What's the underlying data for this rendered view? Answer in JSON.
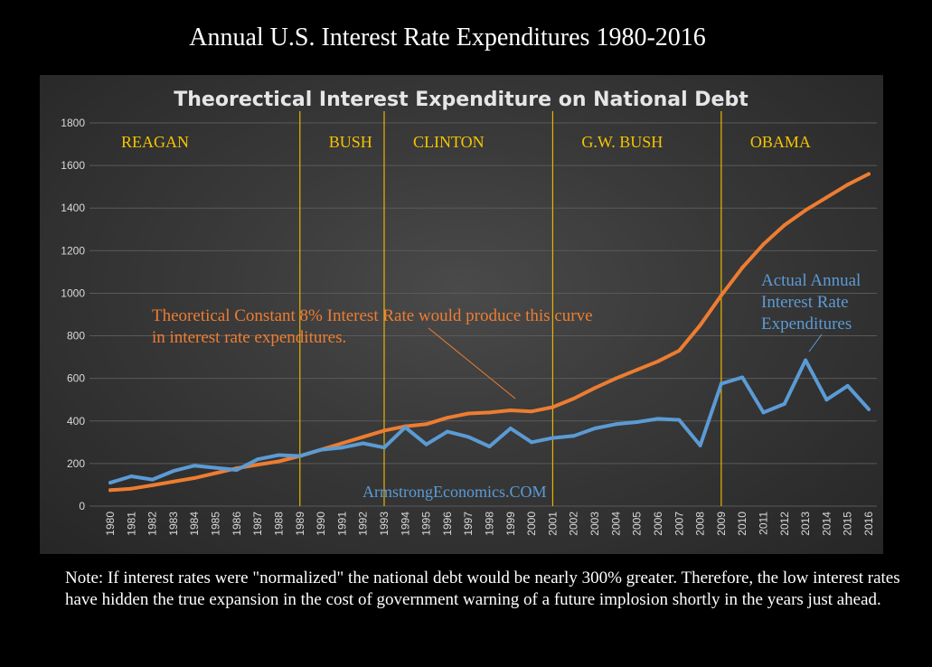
{
  "page_title": "Annual U.S. Interest Rate Expenditures 1980-2016",
  "note": "Note: If interest rates were \"normalized\" the national debt would be nearly 300% greater. Therefore, the low interest rates have hidden the true expansion in the cost of government warning of a future implosion shortly in the years just ahead.",
  "chart_data": {
    "type": "line",
    "title": "Theorectical  Interest  Expenditure  on  National  Debt",
    "xlabel": "",
    "ylabel": "",
    "ylim": [
      0,
      1800
    ],
    "yticks": [
      0,
      200,
      400,
      600,
      800,
      1000,
      1200,
      1400,
      1600,
      1800
    ],
    "grid": true,
    "x": [
      1980,
      1981,
      1982,
      1983,
      1984,
      1985,
      1986,
      1987,
      1988,
      1989,
      1990,
      1991,
      1992,
      1993,
      1994,
      1995,
      1996,
      1997,
      1998,
      1999,
      2000,
      2001,
      2002,
      2003,
      2004,
      2005,
      2006,
      2007,
      2008,
      2009,
      2010,
      2011,
      2012,
      2013,
      2014,
      2015,
      2016
    ],
    "series": [
      {
        "name": "Theoretical Constant 8% Interest Rate",
        "color": "#ED7D31",
        "values": [
          75,
          82,
          98,
          115,
          132,
          155,
          178,
          195,
          210,
          235,
          265,
          295,
          325,
          355,
          375,
          385,
          415,
          435,
          440,
          450,
          445,
          465,
          505,
          555,
          600,
          640,
          680,
          730,
          850,
          990,
          1120,
          1230,
          1320,
          1390,
          1450,
          1510,
          1560
        ]
      },
      {
        "name": "Actual Annual Interest Rate Expenditures",
        "color": "#5B9BD5",
        "values": [
          110,
          140,
          125,
          165,
          190,
          180,
          170,
          220,
          240,
          235,
          265,
          275,
          295,
          275,
          370,
          290,
          350,
          325,
          280,
          365,
          300,
          320,
          330,
          365,
          385,
          395,
          410,
          405,
          285,
          575,
          605,
          440,
          480,
          685,
          500,
          565,
          455
        ]
      }
    ],
    "presidents": [
      {
        "name": "REAGAN",
        "start": 1980,
        "end": 1989
      },
      {
        "name": "BUSH",
        "start": 1989,
        "end": 1993
      },
      {
        "name": "CLINTON",
        "start": 1993,
        "end": 2001
      },
      {
        "name": "G.W. BUSH",
        "start": 2001,
        "end": 2009
      },
      {
        "name": "OBAMA",
        "start": 2009,
        "end": 2016
      }
    ],
    "annotations": {
      "orange_line1": "Theoretical Constant 8% Interest Rate would produce this curve",
      "orange_line2": "in interest rate expenditures.",
      "blue_line1": "Actual Annual",
      "blue_line2": "Interest Rate",
      "blue_line3": "Expenditures",
      "watermark": "ArmstrongEconomics.COM"
    },
    "colors": {
      "divider": "#E8B400",
      "president_label": "#F5C400",
      "orange_annotation": "#ED7D31",
      "blue_annotation": "#5B9BD5",
      "watermark": "#5B9BD5",
      "grid": "#5a5a5a",
      "tick_label": "#d9d9d9"
    }
  }
}
